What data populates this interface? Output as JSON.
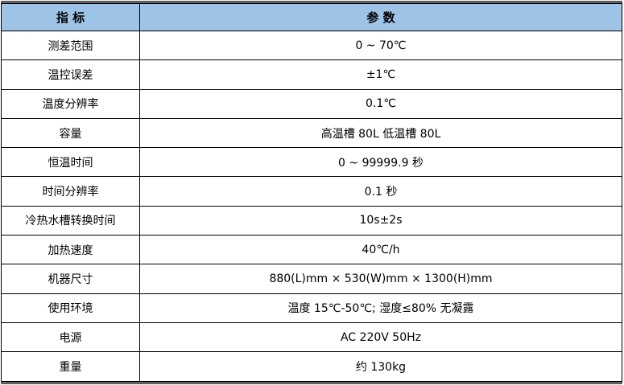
{
  "header": {
    "col1": "指 标",
    "col2": "参 数"
  },
  "header_bg": "#9dc3e6",
  "rows": [
    {
      "label": "测差范围",
      "value": "0 ~ 70℃"
    },
    {
      "label": "温控误差",
      "value": "±1℃"
    },
    {
      "label": "温度分辨率",
      "value": "0.1℃"
    },
    {
      "label": "容量",
      "value": "高温槽 80L 低温槽 80L"
    },
    {
      "label": "恒温时间",
      "value": "0 ~ 99999.9 秒"
    },
    {
      "label": "时间分辨率",
      "value": "0.1 秒"
    },
    {
      "label": "冷热水槽转换时间",
      "value": "10s±2s"
    },
    {
      "label": "加热速度",
      "value": "40℃/h"
    },
    {
      "label": "机器尺寸",
      "value": "880(L)mm × 530(W)mm × 1300(H)mm"
    },
    {
      "label": "使用环境",
      "value": "温度 15℃-50℃; 湿度≤80% 无凝露"
    },
    {
      "label": "电源",
      "value": "AC 220V 50Hz"
    },
    {
      "label": "重量",
      "value": "约 130kg"
    }
  ]
}
